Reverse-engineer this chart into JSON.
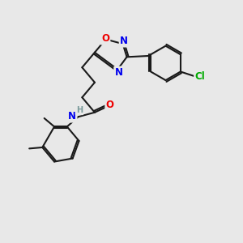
{
  "bg_color": "#e8e8e8",
  "bond_color": "#1a1a1a",
  "atom_colors": {
    "N": "#0000ee",
    "O": "#ee0000",
    "Cl": "#00aa00",
    "H": "#7a9a9a",
    "C": "#1a1a1a"
  },
  "font_size_atom": 8.5,
  "font_size_small": 7.0,
  "fig_size": [
    3.0,
    3.0
  ],
  "dpi": 100,
  "xlim": [
    0,
    10
  ],
  "ylim": [
    0,
    10
  ]
}
